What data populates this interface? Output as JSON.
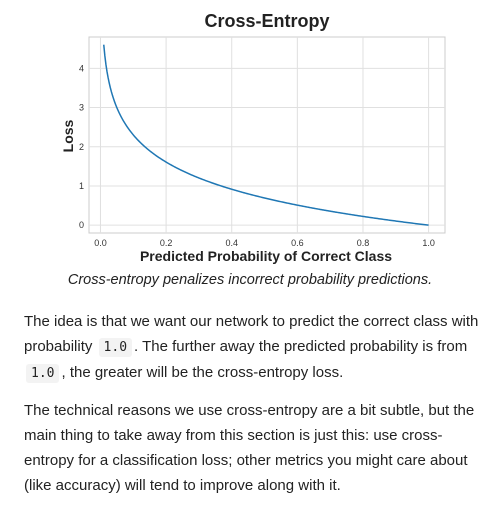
{
  "chart_data": {
    "type": "line",
    "title": "Cross-Entropy",
    "xlabel": "Predicted Probability of Correct Class",
    "ylabel": "Loss",
    "xlim": [
      -0.035,
      1.05
    ],
    "ylim": [
      -0.2,
      4.8
    ],
    "xticks": [
      "0.0",
      "0.2",
      "0.4",
      "0.6",
      "0.8",
      "1.0"
    ],
    "yticks": [
      "0",
      "1",
      "2",
      "3",
      "4"
    ],
    "grid": true,
    "legend": "none",
    "line_color": "#1f77b4",
    "function": "-ln(p)",
    "series": [
      {
        "x": [
          0.01,
          0.02,
          0.03,
          0.05,
          0.075,
          0.1,
          0.15,
          0.2,
          0.25,
          0.3,
          0.35,
          0.4,
          0.45,
          0.5,
          0.55,
          0.6,
          0.65,
          0.7,
          0.75,
          0.8,
          0.85,
          0.9,
          0.95,
          1.0
        ],
        "y": [
          4.61,
          3.91,
          3.51,
          3.0,
          2.59,
          2.3,
          1.9,
          1.61,
          1.39,
          1.2,
          1.05,
          0.92,
          0.8,
          0.69,
          0.6,
          0.51,
          0.43,
          0.36,
          0.29,
          0.22,
          0.16,
          0.11,
          0.05,
          0.0
        ]
      }
    ]
  },
  "caption": "Cross-entropy penalizes incorrect probability predictions.",
  "paragraphs": {
    "p1": {
      "before": "The idea is that we want our network to predict the correct class with probability",
      "code1": "1.0",
      "middle": ". The further away the predicted probability is from",
      "code2": "1.0",
      "after": ", the greater will be the cross-entropy loss."
    },
    "p2": "The technical reasons we use cross-entropy are a bit subtle, but the main thing to take away from this section is just this: use cross-entropy for a classification loss; other metrics you might care about (like accuracy) will tend to improve along with it."
  }
}
